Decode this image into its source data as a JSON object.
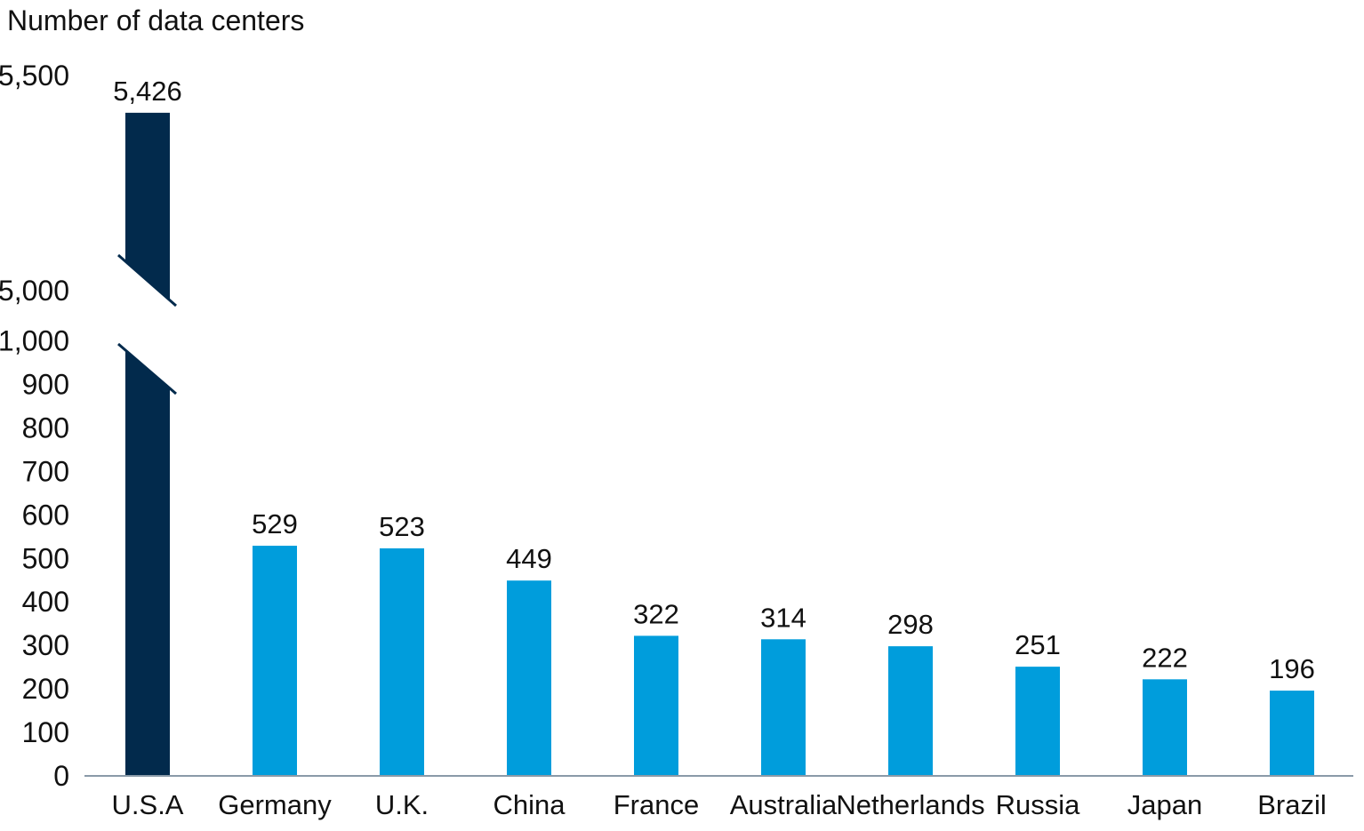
{
  "chart_data": {
    "type": "bar",
    "title": "",
    "ylabel": "Number of data centers",
    "xlabel": "",
    "categories": [
      "U.S.A",
      "Germany",
      "U.K.",
      "China",
      "France",
      "Australia",
      "Netherlands",
      "Russia",
      "Japan",
      "Brazil"
    ],
    "values": [
      5426,
      529,
      523,
      449,
      322,
      314,
      298,
      251,
      222,
      196
    ],
    "data_labels": [
      "5,426",
      "529",
      "523",
      "449",
      "322",
      "314",
      "298",
      "251",
      "222",
      "196"
    ],
    "y_axis": {
      "broken": true,
      "lower_range": [
        0,
        1000
      ],
      "upper_range": [
        5000,
        5500
      ],
      "lower_ticks": [
        0,
        100,
        200,
        300,
        400,
        500,
        600,
        700,
        800,
        900,
        1000
      ],
      "lower_tick_labels": [
        "0",
        "100",
        "200",
        "300",
        "400",
        "500",
        "600",
        "700",
        "800",
        "900",
        "1,000"
      ],
      "upper_ticks": [
        5000,
        5500
      ],
      "upper_tick_labels": [
        "5,000",
        "5,500"
      ]
    },
    "grid": false,
    "colors": {
      "highlight": "#022a4c",
      "default": "#009ddc",
      "axis": "#8a9aa8"
    },
    "highlight_category": "U.S.A"
  }
}
